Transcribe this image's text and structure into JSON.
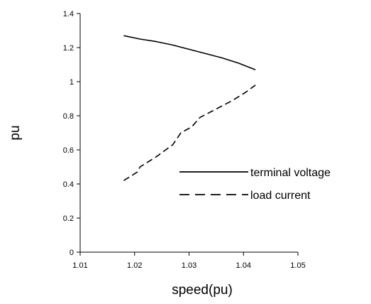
{
  "chart_data": {
    "type": "line",
    "title": "",
    "xlabel": "speed(pu)",
    "ylabel": "pu",
    "xlim": [
      1.01,
      1.05
    ],
    "ylim": [
      0,
      1.4
    ],
    "x_ticks": [
      1.01,
      1.02,
      1.03,
      1.04,
      1.05
    ],
    "x_tick_labels": [
      "1.01",
      "1.02",
      "1.03",
      "1.04",
      "1.05"
    ],
    "y_ticks": [
      0,
      0.2,
      0.4,
      0.6,
      0.8,
      1,
      1.2,
      1.4
    ],
    "y_tick_labels": [
      "0",
      "0.2",
      "0.4",
      "0.6",
      "0.8",
      "1",
      "1.2",
      "1.4"
    ],
    "grid": false,
    "legend_position": "middle-right",
    "series": [
      {
        "name": "terminal voltage",
        "line_style": "solid",
        "color": "#000000",
        "x": [
          1.018,
          1.021,
          1.024,
          1.027,
          1.03,
          1.033,
          1.036,
          1.039,
          1.0422
        ],
        "y": [
          1.27,
          1.25,
          1.235,
          1.215,
          1.19,
          1.165,
          1.14,
          1.11,
          1.07
        ]
      },
      {
        "name": "load current",
        "line_style": "dashed",
        "color": "#000000",
        "x": [
          1.018,
          1.019,
          1.0205,
          1.021,
          1.024,
          1.027,
          1.0285,
          1.0305,
          1.032,
          1.035,
          1.038,
          1.0405,
          1.0422
        ],
        "y": [
          0.42,
          0.44,
          0.47,
          0.5,
          0.56,
          0.63,
          0.7,
          0.735,
          0.79,
          0.84,
          0.89,
          0.94,
          0.98
        ]
      }
    ]
  }
}
